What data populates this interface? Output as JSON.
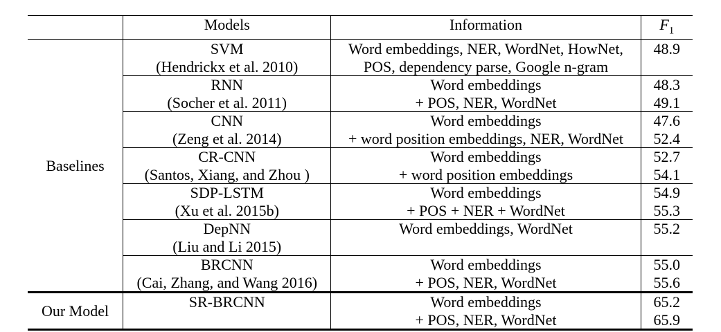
{
  "header": {
    "models": "Models",
    "information": "Information",
    "f1_main": "F",
    "f1_sub": "1"
  },
  "groups": [
    {
      "label": "Baselines",
      "rows": [
        {
          "model": "SVM",
          "ref": "(Hendrickx et al. 2010)",
          "info": [
            "Word embeddings, NER, WordNet, HowNet,",
            "POS, dependency parse, Google n-gram"
          ],
          "f1": [
            "48.9",
            ""
          ]
        },
        {
          "model": "RNN",
          "ref": "(Socher et al. 2011)",
          "info": [
            "Word embeddings",
            "+ POS, NER, WordNet"
          ],
          "f1": [
            "48.3",
            "49.1"
          ]
        },
        {
          "model": "CNN",
          "ref": "(Zeng et al. 2014)",
          "info": [
            "Word embeddings",
            "+ word position embeddings, NER, WordNet"
          ],
          "f1": [
            "47.6",
            "52.4"
          ]
        },
        {
          "model": "CR-CNN",
          "ref": "(Santos, Xiang, and Zhou )",
          "info": [
            "Word embeddings",
            "+ word position embeddings"
          ],
          "f1": [
            "52.7",
            "54.1"
          ]
        },
        {
          "model": "SDP-LSTM",
          "ref": "(Xu et al. 2015b)",
          "info": [
            "Word embeddings",
            "+ POS + NER + WordNet"
          ],
          "f1": [
            "54.9",
            "55.3"
          ]
        },
        {
          "model": "DepNN",
          "ref": "(Liu and Li 2015)",
          "info": [
            "Word embeddings, WordNet",
            ""
          ],
          "f1": [
            "55.2",
            ""
          ]
        },
        {
          "model": "BRCNN",
          "ref": "(Cai, Zhang, and Wang 2016)",
          "info": [
            "Word embeddings",
            "+ POS, NER, WordNet"
          ],
          "f1": [
            "55.0",
            "55.6"
          ]
        }
      ]
    },
    {
      "label": "Our Model",
      "rows": [
        {
          "model": "SR-BRCNN",
          "ref": "",
          "info": [
            "Word embeddings",
            "+ POS, NER, WordNet"
          ],
          "f1": [
            "65.2",
            "65.9"
          ]
        }
      ]
    }
  ]
}
